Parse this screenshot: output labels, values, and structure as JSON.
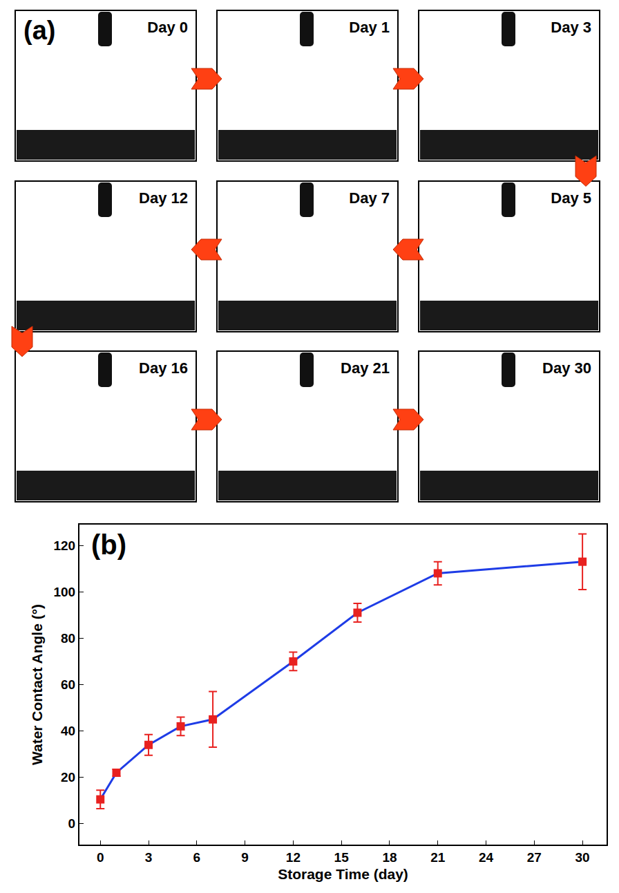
{
  "panel_a": {
    "label": "(a)",
    "rows": [
      [
        "Day 0",
        "Day 1",
        "Day 3"
      ],
      [
        "Day 12",
        "Day 7",
        "Day 5"
      ],
      [
        "Day 16",
        "Day 21",
        "Day 30"
      ]
    ]
  },
  "chart_data": {
    "type": "line",
    "annotations": [
      "(b)"
    ],
    "x_label": "Storage Time (day)",
    "y_label": "Water Contact Angle (°)",
    "x": [
      0,
      1,
      3,
      5,
      7,
      12,
      16,
      21,
      30
    ],
    "series": [
      {
        "color": "#1e3ce6",
        "colors": [
          "#e8211f",
          "#e8211f",
          "#e8211f",
          "#e8211f",
          "#e8211f",
          "#e8211f",
          "#e8211f",
          "#e8211f",
          "#e8211f"
        ],
        "marker": "square",
        "values": [
          10.5,
          22,
          34,
          42,
          45,
          70,
          91,
          108,
          113
        ],
        "errors": [
          4,
          1.5,
          4.5,
          4,
          12,
          4,
          4,
          5,
          12
        ]
      }
    ],
    "xlim": [
      -1.3,
      31.5
    ],
    "xticks": [
      0,
      3,
      6,
      9,
      12,
      15,
      18,
      21,
      24,
      27,
      30
    ],
    "ylim": [
      -9,
      129
    ],
    "yticks": [
      0,
      20,
      40,
      60,
      80,
      100,
      120
    ],
    "grid": false
  }
}
